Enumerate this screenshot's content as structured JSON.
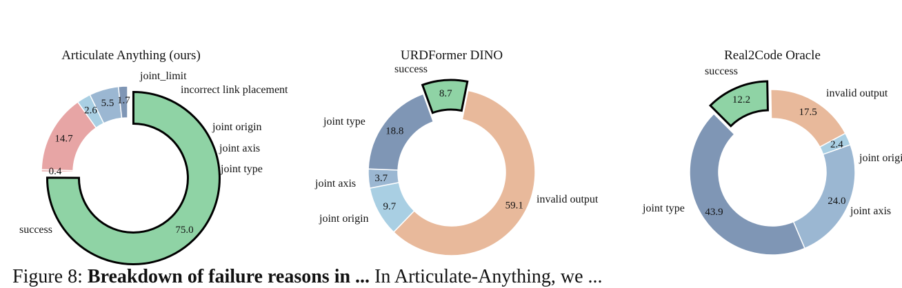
{
  "caption": {
    "prefix": "Figure 8: ",
    "bold": "Breakdown of failure reasons in ...",
    "trail": "In Articulate-Anything, we ..."
  },
  "chart_data": [
    {
      "type": "pie",
      "title": "Articulate Anything (ours)",
      "slices": [
        {
          "label": "success",
          "value": 75.0,
          "color": "#8fd3a5",
          "highlight": true
        },
        {
          "label": "joint_limit",
          "value": 0.4,
          "color": "#e7a5a5"
        },
        {
          "label": "incorrect link placement",
          "value": 14.7,
          "color": "#e7a5a5"
        },
        {
          "label": "joint origin",
          "value": 2.6,
          "color": "#a9cfe3"
        },
        {
          "label": "joint axis",
          "value": 5.5,
          "color": "#9bb7d2"
        },
        {
          "label": "joint type",
          "value": 1.7,
          "color": "#7f96b5"
        }
      ]
    },
    {
      "type": "pie",
      "title": "URDFormer DINO",
      "slices": [
        {
          "label": "success",
          "value": 8.7,
          "color": "#8fd3a5",
          "highlight": true
        },
        {
          "label": "invalid output",
          "value": 59.1,
          "color": "#e8b99b"
        },
        {
          "label": "joint origin",
          "value": 9.7,
          "color": "#a9cfe3"
        },
        {
          "label": "joint axis",
          "value": 3.7,
          "color": "#9bb7d2"
        },
        {
          "label": "joint type",
          "value": 18.8,
          "color": "#7f96b5"
        }
      ]
    },
    {
      "type": "pie",
      "title": "Real2Code Oracle",
      "slices": [
        {
          "label": "success",
          "value": 12.2,
          "color": "#8fd3a5",
          "highlight": true
        },
        {
          "label": "invalid output",
          "value": 17.5,
          "color": "#e8b99b"
        },
        {
          "label": "joint origin",
          "value": 2.4,
          "color": "#a9cfe3"
        },
        {
          "label": "joint axis",
          "value": 24.0,
          "color": "#9bb7d2"
        },
        {
          "label": "joint type",
          "value": 43.9,
          "color": "#7f96b5"
        }
      ]
    }
  ]
}
